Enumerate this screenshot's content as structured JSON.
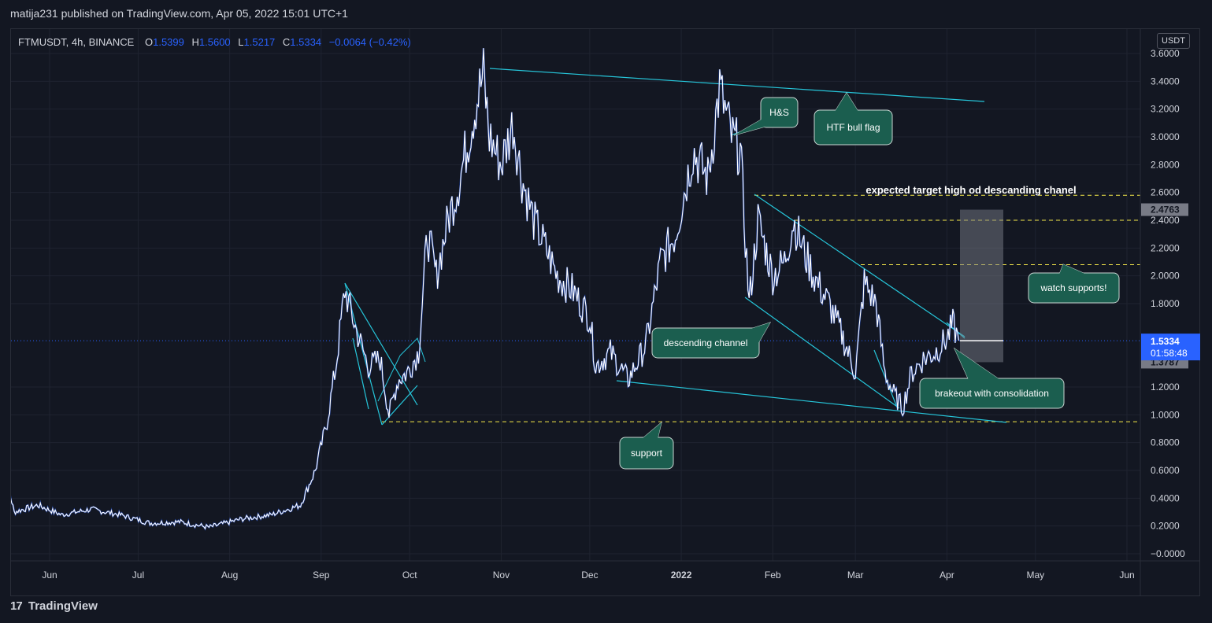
{
  "header": {
    "published": "matija231 published on TradingView.com, Apr 05, 2022 15:01 UTC+1"
  },
  "legend": {
    "symbol": "FTMUSDT, 4h, BINANCE",
    "open_label": "O",
    "open": "1.5399",
    "high_label": "H",
    "high": "1.5600",
    "low_label": "L",
    "low": "1.5217",
    "close_label": "C",
    "close": "1.5334",
    "change": "−0.0064 (−0.42%)"
  },
  "footer": {
    "logo_icon": "tradingview-logo-icon",
    "brand": "TradingView"
  },
  "colors": {
    "background": "#131722",
    "price_line": "#ffffff",
    "trendline": "#26c6da",
    "dashed_level": "#f5e84a",
    "callout": "#1b5e4f",
    "current_price": "#2962ff"
  },
  "chart_data": {
    "type": "line",
    "unit": "USDT",
    "ylim": [
      -0.05,
      3.7
    ],
    "y_ticks": [
      "3.6000",
      "3.4000",
      "3.2000",
      "3.0000",
      "2.8000",
      "2.6000",
      "2.4000",
      "2.2000",
      "2.0000",
      "1.8000",
      "1.2000",
      "1.0000",
      "0.8000",
      "0.6000",
      "0.4000",
      "0.2000",
      "−0.0000"
    ],
    "x_ticks": [
      "Jun",
      "Jul",
      "Aug",
      "Sep",
      "Oct",
      "Nov",
      "Dec",
      "2022",
      "Feb",
      "Mar",
      "Apr",
      "May",
      "Jun"
    ],
    "series": [
      {
        "name": "",
        "x": [
          "2021-05-15",
          "2021-05-20",
          "2021-05-28",
          "2021-06-05",
          "2021-06-15",
          "2021-06-25",
          "2021-07-05",
          "2021-07-15",
          "2021-07-25",
          "2021-08-05",
          "2021-08-15",
          "2021-08-25",
          "2021-08-30",
          "2021-09-03",
          "2021-09-06",
          "2021-09-09",
          "2021-09-13",
          "2021-09-17",
          "2021-09-21",
          "2021-09-24",
          "2021-09-27",
          "2021-09-30",
          "2021-10-04",
          "2021-10-07",
          "2021-10-10",
          "2021-10-14",
          "2021-10-18",
          "2021-10-23",
          "2021-10-26",
          "2021-10-28",
          "2021-11-01",
          "2021-11-05",
          "2021-11-08",
          "2021-11-12",
          "2021-11-16",
          "2021-11-20",
          "2021-11-25",
          "2021-12-01",
          "2021-12-03",
          "2021-12-08",
          "2021-12-14",
          "2021-12-20",
          "2021-12-25",
          "2021-12-30",
          "2022-01-05",
          "2022-01-10",
          "2022-01-14",
          "2022-01-18",
          "2022-01-21",
          "2022-01-24",
          "2022-01-27",
          "2022-02-01",
          "2022-02-05",
          "2022-02-08",
          "2022-02-12",
          "2022-02-16",
          "2022-02-20",
          "2022-02-24",
          "2022-03-01",
          "2022-03-04",
          "2022-03-08",
          "2022-03-11",
          "2022-03-14",
          "2022-03-17",
          "2022-03-20",
          "2022-03-24",
          "2022-03-28",
          "2022-04-01",
          "2022-04-03",
          "2022-04-05"
        ],
        "y": [
          0.75,
          0.3,
          0.35,
          0.28,
          0.32,
          0.28,
          0.22,
          0.23,
          0.19,
          0.25,
          0.28,
          0.35,
          0.6,
          0.95,
          1.35,
          1.9,
          1.6,
          1.35,
          1.4,
          1.0,
          1.25,
          1.3,
          1.45,
          2.3,
          2.0,
          2.4,
          2.7,
          3.2,
          3.45,
          3.0,
          2.8,
          3.1,
          2.7,
          2.4,
          2.2,
          2.0,
          1.9,
          1.7,
          1.35,
          1.45,
          1.25,
          1.5,
          2.1,
          2.3,
          2.9,
          2.7,
          3.35,
          3.0,
          2.9,
          1.8,
          2.4,
          2.0,
          2.1,
          2.4,
          2.15,
          1.95,
          1.8,
          1.6,
          1.3,
          1.95,
          1.8,
          1.3,
          1.15,
          1.05,
          1.3,
          1.4,
          1.45,
          1.55,
          1.65,
          1.5334
        ]
      }
    ],
    "levels": {
      "current_price": "1.5334",
      "countdown": "01:58:48",
      "crosshair_price": "1.5336",
      "target_top": "2.4763",
      "target_bottom": "1.3787",
      "support": 0.95,
      "dashed_levels": [
        2.58,
        2.4,
        2.08,
        0.95
      ]
    },
    "annotations": [
      {
        "name": "hs",
        "text": "H&S"
      },
      {
        "name": "htf-bull-flag",
        "text": "HTF bull flag"
      },
      {
        "name": "target",
        "text": "expected target high od descanding chanel"
      },
      {
        "name": "watch-supports",
        "text": "watch supports!"
      },
      {
        "name": "descending-channel",
        "text": "descending channel"
      },
      {
        "name": "brakeout",
        "text": "brakeout with consolidation"
      },
      {
        "name": "support",
        "text": "support"
      }
    ]
  }
}
